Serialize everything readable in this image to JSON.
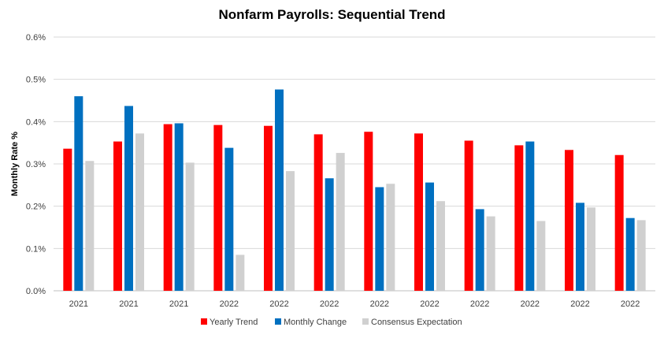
{
  "chart_data": {
    "type": "bar",
    "title": "Nonfarm Payrolls: Sequential Trend",
    "xlabel": "",
    "ylabel": "Monthly Rate %",
    "ylim": [
      0,
      0.6
    ],
    "yticks": [
      "0.0%",
      "0.1%",
      "0.2%",
      "0.3%",
      "0.4%",
      "0.5%",
      "0.6%"
    ],
    "grid": true,
    "legend_position": "bottom",
    "categories": [
      "2021",
      "2021",
      "2021",
      "2022",
      "2022",
      "2022",
      "2022",
      "2022",
      "2022",
      "2022",
      "2022",
      "2022"
    ],
    "series": [
      {
        "name": "Yearly Trend",
        "color": "#ff0000",
        "values": [
          0.336,
          0.353,
          0.394,
          0.392,
          0.39,
          0.37,
          0.376,
          0.372,
          0.355,
          0.344,
          0.333,
          0.321
        ]
      },
      {
        "name": "Monthly Change",
        "color": "#0070c0",
        "values": [
          0.46,
          0.437,
          0.396,
          0.338,
          0.476,
          0.266,
          0.245,
          0.256,
          0.193,
          0.353,
          0.208,
          0.172
        ]
      },
      {
        "name": "Consensus Expectation",
        "color": "#d0d0d0",
        "values": [
          0.307,
          0.372,
          0.303,
          0.085,
          0.283,
          0.326,
          0.253,
          0.212,
          0.176,
          0.165,
          0.197,
          0.167
        ]
      }
    ]
  }
}
